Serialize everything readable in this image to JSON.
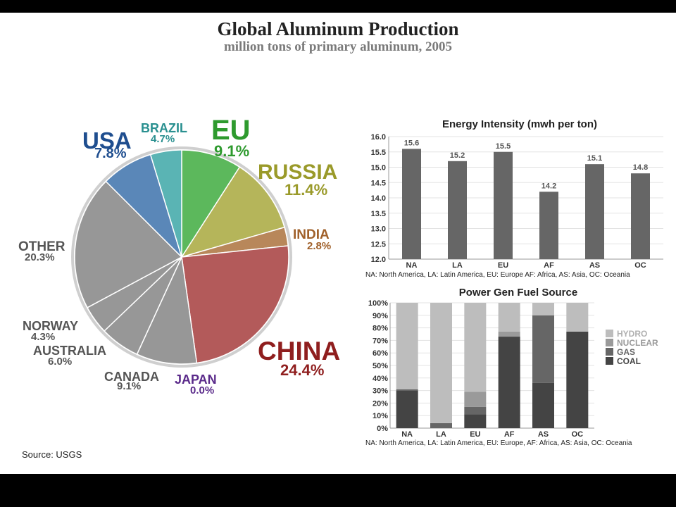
{
  "header": {
    "title": "Global Aluminum Production",
    "subtitle": "million tons of primary aluminum, 2005"
  },
  "footer": {
    "source": "Source: USGS"
  },
  "chart_data": [
    {
      "type": "pie",
      "slices": [
        {
          "label": "EU",
          "pct_label": "9.1%",
          "value": 9.1,
          "color": "#5cb85c",
          "label_color": "#2e9a2e"
        },
        {
          "label": "RUSSIA",
          "pct_label": "11.4%",
          "value": 11.4,
          "color": "#b5b55a",
          "label_color": "#9a9a2a"
        },
        {
          "label": "INDIA",
          "pct_label": "2.8%",
          "value": 2.8,
          "color": "#b8875a",
          "label_color": "#a0602a"
        },
        {
          "label": "CHINA",
          "pct_label": "24.4%",
          "value": 24.4,
          "color": "#b35a5a",
          "label_color": "#8f1e1e"
        },
        {
          "label": "JAPAN",
          "pct_label": "0.0%",
          "value": 0.0,
          "color": "#7a4a9a",
          "label_color": "#5a2a8a"
        },
        {
          "label": "CANADA",
          "pct_label": "9.1%",
          "value": 9.1,
          "color": "#979797",
          "label_color": "#555555"
        },
        {
          "label": "AUSTRALIA",
          "pct_label": "6.0%",
          "value": 6.0,
          "color": "#979797",
          "label_color": "#555555"
        },
        {
          "label": "NORWAY",
          "pct_label": "4.3%",
          "value": 4.3,
          "color": "#979797",
          "label_color": "#555555"
        },
        {
          "label": "OTHER",
          "pct_label": "20.3%",
          "value": 20.3,
          "color": "#979797",
          "label_color": "#555555"
        },
        {
          "label": "USA",
          "pct_label": "7.8%",
          "value": 7.8,
          "color": "#5a87b8",
          "label_color": "#1f4e8f"
        },
        {
          "label": "BRAZIL",
          "pct_label": "4.7%",
          "value": 4.7,
          "color": "#5ab4b4",
          "label_color": "#2a9090"
        }
      ]
    },
    {
      "type": "bar",
      "title": "Energy Intensity (mwh per ton)",
      "categories": [
        "NA",
        "LA",
        "EU",
        "AF",
        "AS",
        "OC"
      ],
      "values": [
        15.6,
        15.2,
        15.5,
        14.2,
        15.1,
        14.8
      ],
      "value_labels": [
        "15.6",
        "15.2",
        "15.5",
        "14.2",
        "15.1",
        "14.8"
      ],
      "ylim": [
        12.0,
        16.0
      ],
      "yticks": [
        "12.0",
        "12.5",
        "13.0",
        "13.5",
        "14.0",
        "14.5",
        "15.0",
        "15.5",
        "16.0"
      ],
      "grid": true,
      "bar_color": "#666666",
      "footnote": "NA: North America, LA: Latin America, EU: Europe AF: Africa, AS: Asia, OC: Oceania"
    },
    {
      "type": "bar",
      "stacked": true,
      "title": "Power Gen Fuel Source",
      "categories": [
        "NA",
        "LA",
        "EU",
        "AF",
        "AS",
        "OC"
      ],
      "series": [
        {
          "name": "COAL",
          "color": "#444444",
          "values": [
            30,
            0,
            11,
            73,
            36,
            77
          ]
        },
        {
          "name": "GAS",
          "color": "#666666",
          "values": [
            1,
            4,
            6,
            0,
            54,
            0
          ]
        },
        {
          "name": "NUCLEAR",
          "color": "#9a9a9a",
          "values": [
            0,
            0,
            12,
            4,
            0,
            0
          ]
        },
        {
          "name": "HYDRO",
          "color": "#bdbdbd",
          "values": [
            69,
            96,
            71,
            23,
            10,
            23
          ]
        }
      ],
      "ylim": [
        0,
        100
      ],
      "yticks": [
        "0%",
        "10%",
        "20%",
        "30%",
        "40%",
        "50%",
        "60%",
        "70%",
        "80%",
        "90%",
        "100%"
      ],
      "grid": true,
      "legend_position": "right",
      "footnote": "NA: North America, LA: Latin America, EU: Europe, AF: Africa, AS: Asia, OC: Oceania"
    }
  ]
}
